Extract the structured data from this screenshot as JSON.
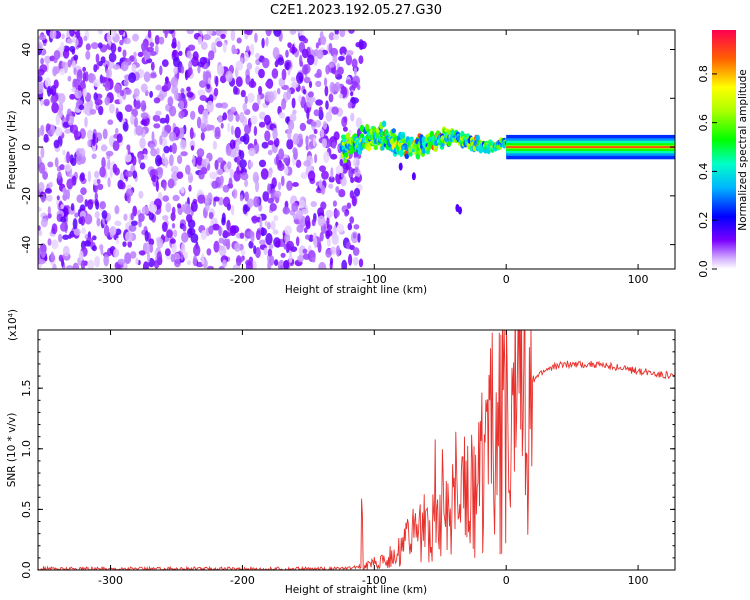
{
  "title": "C2E1.2023.192.05.27.G30",
  "chart_data": [
    {
      "type": "heatmap",
      "xlabel": "Height of straight line (km)",
      "ylabel": "Frequency (Hz)",
      "xlim": [
        -355,
        128
      ],
      "ylim": [
        -50,
        48
      ],
      "xticks": [
        -300,
        -200,
        -100,
        0,
        100
      ],
      "yticks": [
        -40,
        -20,
        0,
        20,
        40
      ],
      "colorbar": {
        "label": "Normalized spectral amplitude",
        "range": [
          0.0,
          0.98
        ],
        "ticks": [
          0.0,
          0.2,
          0.4,
          0.6,
          0.8
        ],
        "tick_labels": [
          "0.0",
          "0.2",
          "0.4",
          "0.6",
          "0.8"
        ]
      },
      "regions": [
        {
          "x_range": [
            -355,
            -125
          ],
          "freq_range": [
            -50,
            48
          ],
          "amplitude": [
            0.02,
            0.15
          ],
          "pattern": "scattered noise"
        },
        {
          "x_range": [
            -125,
            0
          ],
          "center_freq": [
            1,
            5
          ],
          "spread_hz": [
            2,
            9
          ],
          "amplitude": [
            0.3,
            0.95
          ],
          "pattern": "wavering band"
        },
        {
          "x_range": [
            0,
            128
          ],
          "center_freq": 0,
          "spread_hz": [
            2,
            5
          ],
          "amplitude": [
            0.4,
            0.9
          ],
          "pattern": "stable carrier band"
        }
      ]
    },
    {
      "type": "line",
      "xlabel": "Height of straight line (km)",
      "ylabel": "SNR (10 * v/v)",
      "scale_label": "(x10⁴)",
      "xlim": [
        -355,
        128
      ],
      "ylim": [
        0.0,
        1.98
      ],
      "xticks": [
        -300,
        -200,
        -100,
        0,
        100
      ],
      "yticks": [
        0.0,
        0.5,
        1.0,
        1.5
      ],
      "ytick_labels": [
        "0.0",
        "0.5",
        "1.0",
        "1.5"
      ],
      "color": "#e8312c",
      "series": [
        {
          "x": [
            -355,
            -120,
            -105,
            -90,
            -80,
            -70,
            -60,
            -50,
            -40,
            -30,
            -20,
            -15,
            -12,
            -10,
            -5,
            0,
            10,
            20,
            30,
            40,
            50,
            60,
            70,
            80,
            90,
            100,
            110,
            120,
            128
          ],
          "y": [
            0.01,
            0.01,
            0.04,
            0.1,
            0.17,
            0.28,
            0.35,
            0.42,
            0.5,
            0.62,
            0.78,
            0.85,
            1.05,
            1.0,
            1.12,
            1.25,
            1.42,
            1.57,
            1.65,
            1.69,
            1.7,
            1.7,
            1.69,
            1.68,
            1.66,
            1.64,
            1.63,
            1.61,
            1.6
          ]
        }
      ]
    }
  ]
}
